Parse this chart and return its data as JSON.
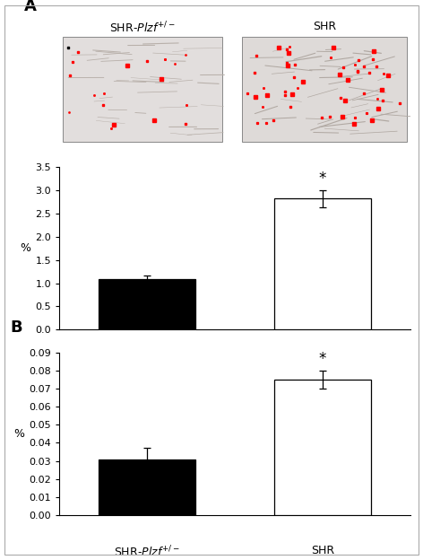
{
  "panel_A_title": "A",
  "panel_B_title": "B",
  "categories": [
    "SHR-Plzf+/-",
    "SHR"
  ],
  "bar_A_values": [
    1.08,
    2.82
  ],
  "bar_A_errors": [
    0.08,
    0.18
  ],
  "bar_B_values": [
    0.031,
    0.075
  ],
  "bar_B_errors": [
    0.006,
    0.005
  ],
  "bar_colors": [
    "black",
    "white"
  ],
  "bar_edgecolor": "black",
  "ylabel": "%",
  "ylim_A": [
    0.0,
    3.5
  ],
  "yticks_A": [
    0.0,
    0.5,
    1.0,
    1.5,
    2.0,
    2.5,
    3.0,
    3.5
  ],
  "ylim_B": [
    0.0,
    0.09
  ],
  "yticks_B": [
    0.0,
    0.01,
    0.02,
    0.03,
    0.04,
    0.05,
    0.06,
    0.07,
    0.08,
    0.09
  ],
  "sig_star": "*",
  "img_left_color": "#d8d4d0",
  "img_right_color": "#ccc8c4",
  "background_color": "white"
}
